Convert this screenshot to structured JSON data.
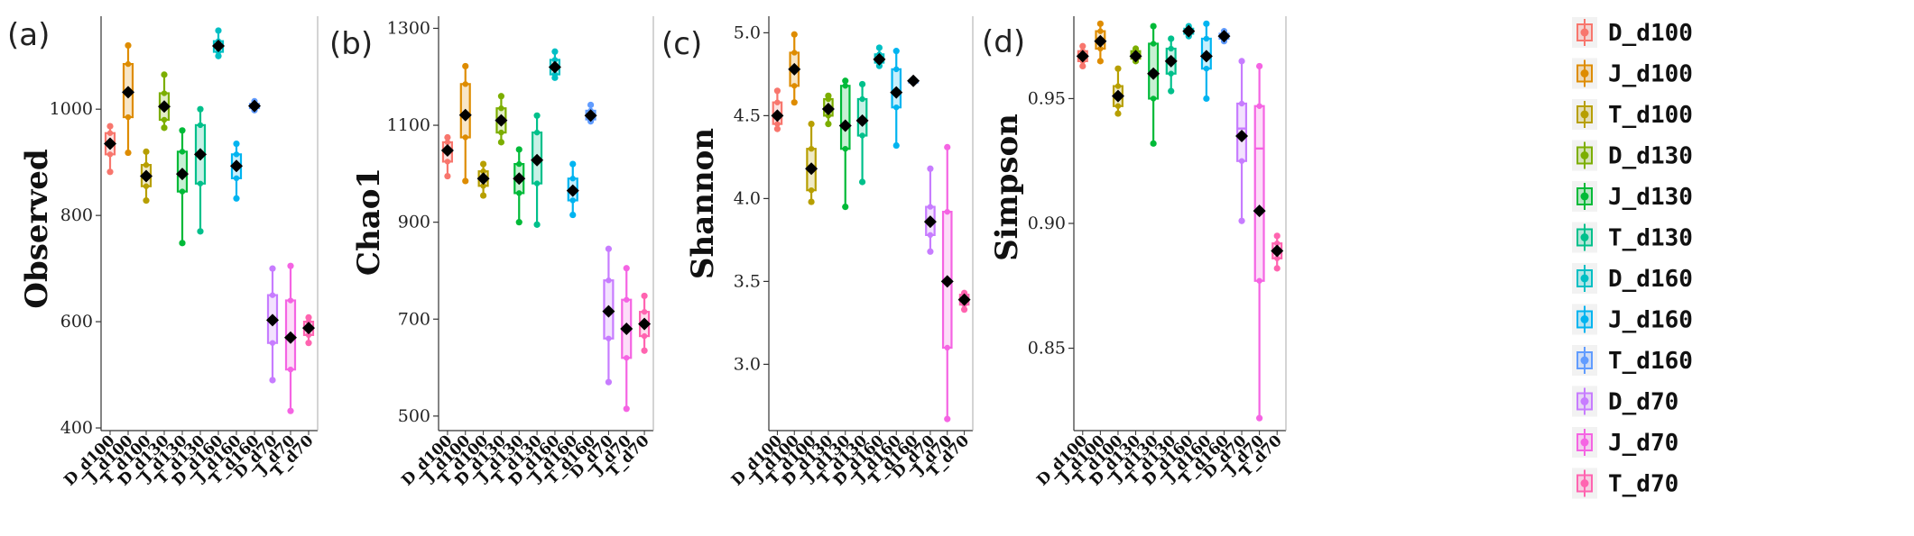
{
  "chart_data": [
    {
      "type": "box",
      "panel_label": "(a)",
      "ylabel": "Observed",
      "ylim": [
        395,
        1175
      ],
      "yticks": [
        400,
        600,
        800,
        1000
      ],
      "categories": [
        "D_d100",
        "J_d100",
        "T_d100",
        "D_d130",
        "J_d130",
        "T_d130",
        "D_d160",
        "J_d160",
        "T_d160",
        "D_d70",
        "J_d70",
        "T_d70"
      ],
      "boxes": [
        {
          "min": 882,
          "q1": 915,
          "median": 938,
          "q3": 955,
          "max": 968,
          "mean": 935
        },
        {
          "min": 918,
          "q1": 985,
          "median": 1035,
          "q3": 1085,
          "max": 1120,
          "mean": 1032
        },
        {
          "min": 828,
          "q1": 855,
          "median": 875,
          "q3": 895,
          "max": 920,
          "mean": 874
        },
        {
          "min": 965,
          "q1": 980,
          "median": 1005,
          "q3": 1030,
          "max": 1065,
          "mean": 1005
        },
        {
          "min": 748,
          "q1": 845,
          "median": 880,
          "q3": 920,
          "max": 960,
          "mean": 878
        },
        {
          "min": 770,
          "q1": 860,
          "median": 915,
          "q3": 970,
          "max": 1000,
          "mean": 915
        },
        {
          "min": 1100,
          "q1": 1108,
          "median": 1118,
          "q3": 1128,
          "max": 1148,
          "mean": 1119
        },
        {
          "min": 832,
          "q1": 870,
          "median": 893,
          "q3": 915,
          "max": 935,
          "mean": 893
        },
        {
          "min": 998,
          "q1": 1002,
          "median": 1005,
          "q3": 1010,
          "max": 1015,
          "mean": 1006
        },
        {
          "min": 490,
          "q1": 560,
          "median": 600,
          "q3": 650,
          "max": 700,
          "mean": 603
        },
        {
          "min": 432,
          "q1": 510,
          "median": 570,
          "q3": 640,
          "max": 705,
          "mean": 570
        },
        {
          "min": 560,
          "q1": 575,
          "median": 588,
          "q3": 600,
          "max": 608,
          "mean": 588
        }
      ]
    },
    {
      "type": "box",
      "panel_label": "(b)",
      "ylabel": "Chao1",
      "ylim": [
        470,
        1325
      ],
      "yticks": [
        500,
        700,
        900,
        1100,
        1300
      ],
      "categories": [
        "D_d100",
        "J_d100",
        "T_d100",
        "D_d130",
        "J_d130",
        "T_d130",
        "D_d160",
        "J_d160",
        "T_d160",
        "D_d70",
        "J_d70",
        "T_d70"
      ],
      "boxes": [
        {
          "min": 995,
          "q1": 1025,
          "median": 1050,
          "q3": 1065,
          "max": 1075,
          "mean": 1048
        },
        {
          "min": 985,
          "q1": 1075,
          "median": 1120,
          "q3": 1185,
          "max": 1222,
          "mean": 1121
        },
        {
          "min": 955,
          "q1": 975,
          "median": 990,
          "q3": 1005,
          "max": 1020,
          "mean": 990
        },
        {
          "min": 1065,
          "q1": 1085,
          "median": 1110,
          "q3": 1135,
          "max": 1160,
          "mean": 1110
        },
        {
          "min": 900,
          "q1": 960,
          "median": 990,
          "q3": 1020,
          "max": 1050,
          "mean": 990
        },
        {
          "min": 895,
          "q1": 980,
          "median": 1030,
          "q3": 1085,
          "max": 1120,
          "mean": 1028
        },
        {
          "min": 1198,
          "q1": 1205,
          "median": 1220,
          "q3": 1235,
          "max": 1252,
          "mean": 1220
        },
        {
          "min": 915,
          "q1": 945,
          "median": 965,
          "q3": 990,
          "max": 1020,
          "mean": 965
        },
        {
          "min": 1108,
          "q1": 1112,
          "median": 1120,
          "q3": 1130,
          "max": 1142,
          "mean": 1120
        },
        {
          "min": 570,
          "q1": 660,
          "median": 715,
          "q3": 780,
          "max": 845,
          "mean": 716
        },
        {
          "min": 515,
          "q1": 620,
          "median": 680,
          "q3": 740,
          "max": 805,
          "mean": 680
        },
        {
          "min": 635,
          "q1": 665,
          "median": 690,
          "q3": 715,
          "max": 748,
          "mean": 690
        }
      ]
    },
    {
      "type": "box",
      "panel_label": "(c)",
      "ylabel": "Shannon",
      "ylim": [
        2.6,
        5.1
      ],
      "yticks": [
        3.0,
        3.5,
        4.0,
        4.5,
        5.0
      ],
      "categories": [
        "D_d100",
        "J_d100",
        "T_d100",
        "D_d130",
        "J_d130",
        "T_d130",
        "D_d160",
        "J_d160",
        "T_d160",
        "D_d70",
        "J_d70",
        "T_d70"
      ],
      "boxes": [
        {
          "min": 4.42,
          "q1": 4.45,
          "median": 4.5,
          "q3": 4.58,
          "max": 4.65,
          "mean": 4.5
        },
        {
          "min": 4.58,
          "q1": 4.68,
          "median": 4.77,
          "q3": 4.88,
          "max": 4.99,
          "mean": 4.78
        },
        {
          "min": 3.98,
          "q1": 4.05,
          "median": 4.18,
          "q3": 4.3,
          "max": 4.45,
          "mean": 4.18
        },
        {
          "min": 4.45,
          "q1": 4.5,
          "median": 4.55,
          "q3": 4.6,
          "max": 4.62,
          "mean": 4.54
        },
        {
          "min": 3.95,
          "q1": 4.3,
          "median": 4.45,
          "q3": 4.68,
          "max": 4.71,
          "mean": 4.44
        },
        {
          "min": 4.1,
          "q1": 4.38,
          "median": 4.48,
          "q3": 4.6,
          "max": 4.69,
          "mean": 4.47
        },
        {
          "min": 4.8,
          "q1": 4.82,
          "median": 4.84,
          "q3": 4.87,
          "max": 4.91,
          "mean": 4.84
        },
        {
          "min": 4.32,
          "q1": 4.55,
          "median": 4.65,
          "q3": 4.78,
          "max": 4.89,
          "mean": 4.64
        },
        {
          "min": 4.7,
          "q1": 4.7,
          "median": 4.71,
          "q3": 4.71,
          "max": 4.72,
          "mean": 4.71
        },
        {
          "min": 3.68,
          "q1": 3.78,
          "median": 3.86,
          "q3": 3.95,
          "max": 4.18,
          "mean": 3.86
        },
        {
          "min": 2.67,
          "q1": 3.1,
          "median": 3.5,
          "q3": 3.92,
          "max": 4.31,
          "mean": 3.5
        },
        {
          "min": 3.33,
          "q1": 3.36,
          "median": 3.39,
          "q3": 3.42,
          "max": 3.43,
          "mean": 3.39
        }
      ]
    },
    {
      "type": "box",
      "panel_label": "(d)",
      "ylabel": "Simpson",
      "ylim": [
        0.817,
        0.983
      ],
      "yticks": [
        0.85,
        0.9,
        0.95
      ],
      "categories": [
        "D_d100",
        "J_d100",
        "T_d100",
        "D_d130",
        "J_d130",
        "T_d130",
        "D_d160",
        "J_d160",
        "T_d160",
        "D_d70",
        "J_d70",
        "T_d70"
      ],
      "boxes": [
        {
          "min": 0.963,
          "q1": 0.965,
          "median": 0.967,
          "q3": 0.969,
          "max": 0.971,
          "mean": 0.967
        },
        {
          "min": 0.965,
          "q1": 0.97,
          "median": 0.974,
          "q3": 0.977,
          "max": 0.98,
          "mean": 0.973
        },
        {
          "min": 0.944,
          "q1": 0.947,
          "median": 0.951,
          "q3": 0.955,
          "max": 0.962,
          "mean": 0.951
        },
        {
          "min": 0.965,
          "q1": 0.966,
          "median": 0.968,
          "q3": 0.969,
          "max": 0.97,
          "mean": 0.967
        },
        {
          "min": 0.932,
          "q1": 0.95,
          "median": 0.961,
          "q3": 0.972,
          "max": 0.979,
          "mean": 0.96
        },
        {
          "min": 0.953,
          "q1": 0.96,
          "median": 0.966,
          "q3": 0.97,
          "max": 0.974,
          "mean": 0.965
        },
        {
          "min": 0.975,
          "q1": 0.976,
          "median": 0.977,
          "q3": 0.978,
          "max": 0.979,
          "mean": 0.977
        },
        {
          "min": 0.95,
          "q1": 0.962,
          "median": 0.968,
          "q3": 0.974,
          "max": 0.98,
          "mean": 0.967
        },
        {
          "min": 0.973,
          "q1": 0.974,
          "median": 0.975,
          "q3": 0.976,
          "max": 0.977,
          "mean": 0.975
        },
        {
          "min": 0.901,
          "q1": 0.925,
          "median": 0.938,
          "q3": 0.948,
          "max": 0.965,
          "mean": 0.935
        },
        {
          "min": 0.822,
          "q1": 0.877,
          "median": 0.93,
          "q3": 0.947,
          "max": 0.963,
          "mean": 0.905
        },
        {
          "min": 0.882,
          "q1": 0.886,
          "median": 0.889,
          "q3": 0.892,
          "max": 0.895,
          "mean": 0.889
        }
      ]
    }
  ],
  "legend": {
    "entries": [
      {
        "label": "D_d100",
        "color": "#F8766D"
      },
      {
        "label": "J_d100",
        "color": "#DE8C00"
      },
      {
        "label": "T_d100",
        "color": "#B79F00"
      },
      {
        "label": "D_d130",
        "color": "#7CAE00"
      },
      {
        "label": "J_d130",
        "color": "#00BA38"
      },
      {
        "label": "T_d130",
        "color": "#00C08B"
      },
      {
        "label": "D_d160",
        "color": "#00BFC4"
      },
      {
        "label": "J_d160",
        "color": "#00B4F0"
      },
      {
        "label": "T_d160",
        "color": "#619CFF"
      },
      {
        "label": "D_d70",
        "color": "#C77CFF"
      },
      {
        "label": "J_d70",
        "color": "#F564E3"
      },
      {
        "label": "T_d70",
        "color": "#FF64B0"
      }
    ]
  }
}
